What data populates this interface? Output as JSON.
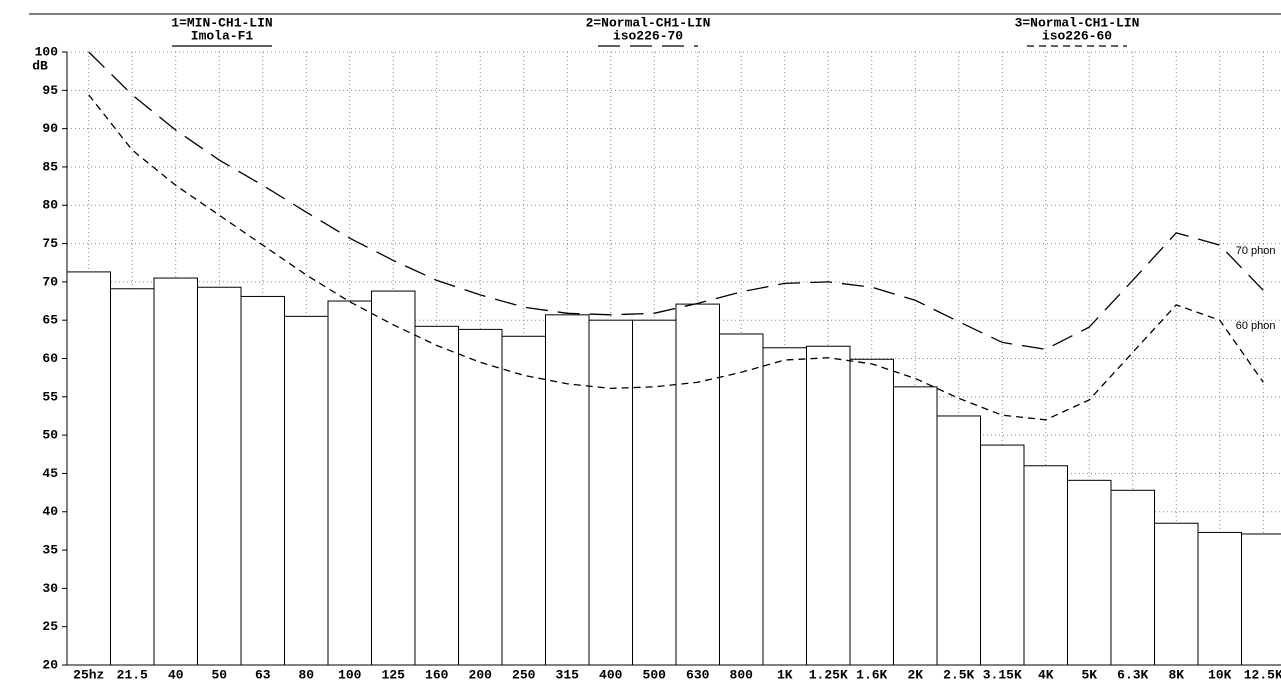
{
  "chart_data": {
    "type": "bar",
    "y_unit": "dB",
    "categories": [
      "25hz",
      "21.5",
      "40",
      "50",
      "63",
      "80",
      "100",
      "125",
      "160",
      "200",
      "250",
      "315",
      "400",
      "500",
      "630",
      "800",
      "1K",
      "1.25K",
      "1.6K",
      "2K",
      "2.5K",
      "3.15K",
      "4K",
      "5K",
      "6.3K",
      "8K",
      "10K",
      "12.5K"
    ],
    "series": [
      {
        "name": "1=MIN-CH1-LIN",
        "label": "Imola-F1",
        "type": "bar",
        "color": "#000000",
        "values": [
          71.3,
          69.1,
          70.5,
          69.3,
          68.1,
          65.5,
          67.5,
          68.8,
          64.2,
          63.8,
          62.9,
          65.7,
          65.0,
          65.0,
          67.1,
          63.2,
          61.4,
          61.6,
          59.9,
          56.3,
          52.5,
          48.7,
          46.0,
          44.1,
          42.8,
          38.5,
          37.3,
          37.1
        ]
      },
      {
        "name": "2=Normal-CH1-LIN",
        "label": "iso226-70",
        "type": "line",
        "dash": "22 10",
        "annotation": "70 phon",
        "color": "#000000",
        "values": [
          100.0,
          94.4,
          89.8,
          85.9,
          82.6,
          79.1,
          75.7,
          72.8,
          70.2,
          68.3,
          66.7,
          65.9,
          65.7,
          65.9,
          67.2,
          68.7,
          69.8,
          70.0,
          69.3,
          67.6,
          64.8,
          62.1,
          61.2,
          64.1,
          70.2,
          76.4,
          74.8,
          68.9
        ]
      },
      {
        "name": "3=Normal-CH1-LIN",
        "label": "iso226-60",
        "type": "line",
        "dash": "7 5",
        "annotation": "60 phon",
        "color": "#000000",
        "values": [
          94.4,
          87.2,
          82.6,
          78.7,
          74.8,
          70.9,
          67.4,
          64.4,
          61.7,
          59.5,
          57.8,
          56.7,
          56.1,
          56.3,
          56.9,
          58.2,
          59.8,
          60.1,
          59.3,
          57.4,
          54.8,
          52.6,
          52.0,
          54.6,
          60.8,
          67.0,
          65.0,
          56.9
        ]
      }
    ],
    "ylim": [
      20,
      100
    ],
    "yticks": [
      20,
      25,
      30,
      35,
      40,
      45,
      50,
      55,
      60,
      65,
      70,
      75,
      80,
      85,
      90,
      95,
      100
    ],
    "grid": true
  }
}
